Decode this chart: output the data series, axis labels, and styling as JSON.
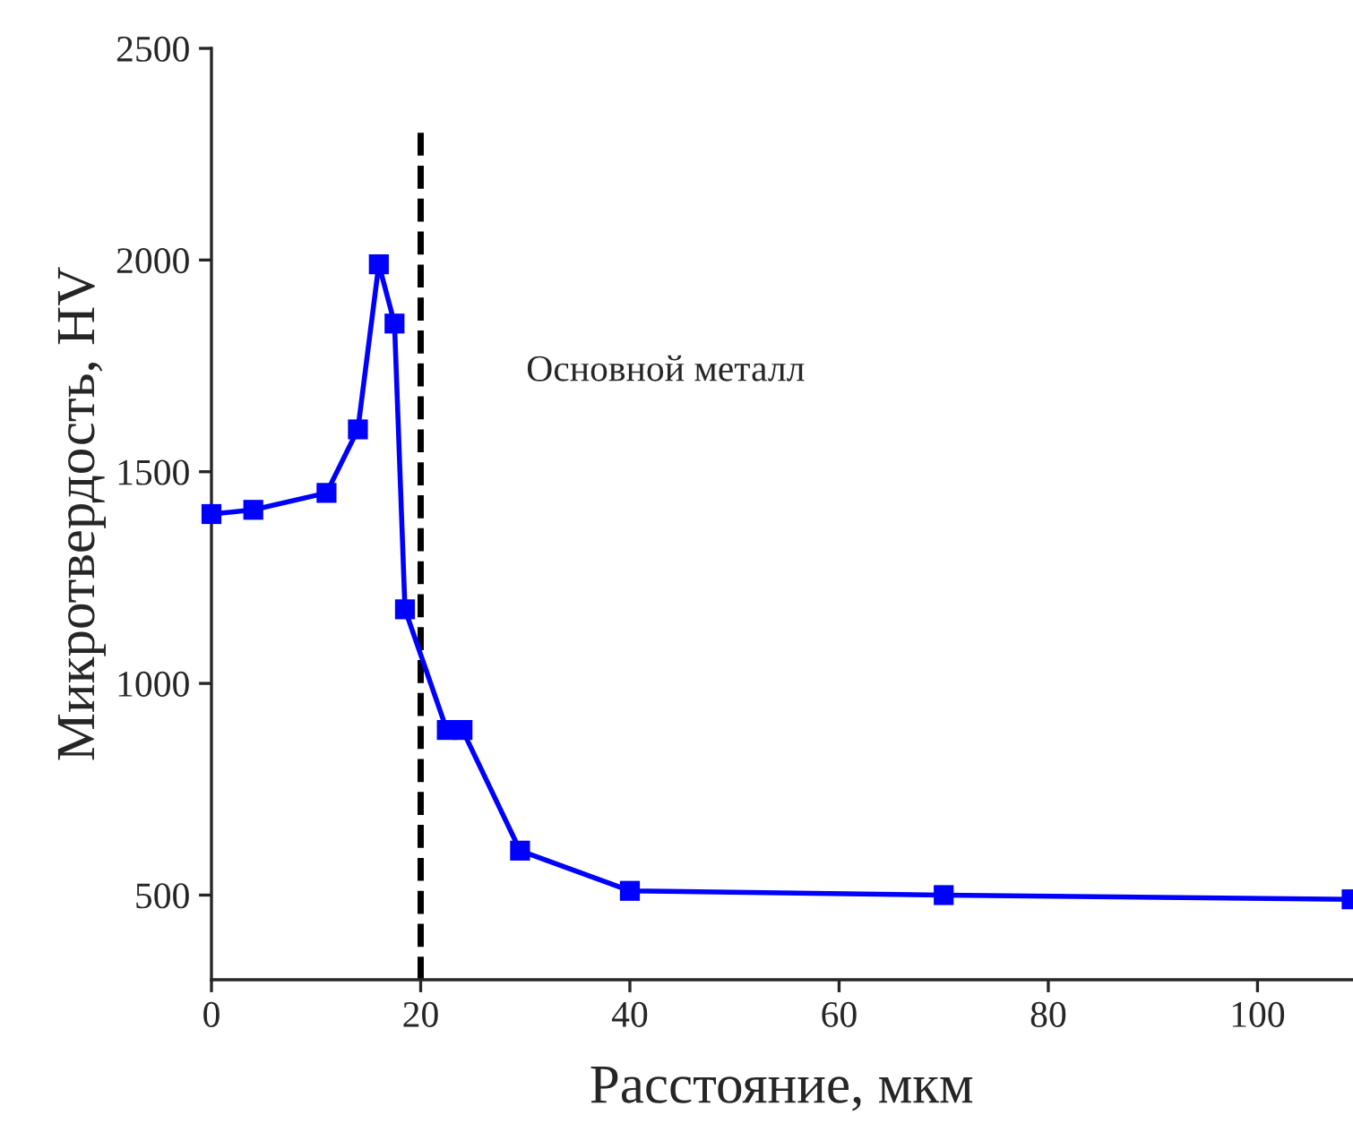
{
  "chart_data": {
    "type": "line",
    "xlabel": "Расстояние, мкм",
    "ylabel": "Микротвердость, HV",
    "series": [
      {
        "color": "#0000ff",
        "x": [
          0,
          4,
          11,
          14,
          16,
          17.5,
          18.5,
          22.5,
          24,
          29.5,
          40,
          70,
          109
        ],
        "values": [
          1400,
          1410,
          1450,
          1600,
          1990,
          1850,
          1175,
          890,
          890,
          605,
          510,
          500,
          490
        ]
      }
    ],
    "marker": "square",
    "line_style": "solid",
    "xlim": [
      0,
      109
    ],
    "xticks": [
      0,
      20,
      40,
      60,
      80,
      100
    ],
    "ylim": [
      300,
      2500
    ],
    "yticks": [
      500,
      1000,
      1500,
      2000,
      2500
    ],
    "grid": false,
    "legend": false,
    "ref_lines": [
      {
        "axis": "x",
        "value": 20,
        "color": "#000000",
        "line_style": "dashed"
      }
    ],
    "annotations": [
      "Основной металл"
    ]
  }
}
